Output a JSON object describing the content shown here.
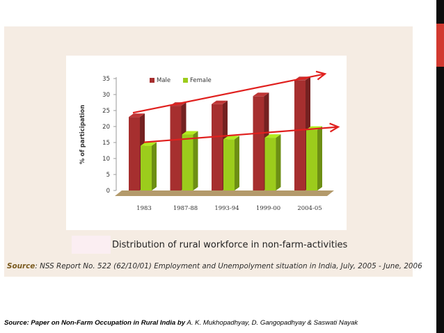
{
  "colors": {
    "male": "#a62f2f",
    "female": "#9ccc1c",
    "trend": "#e0201e",
    "floor": "#b39a6b"
  },
  "chart_data": {
    "type": "bar",
    "categories": [
      "1983",
      "1987-88",
      "1993-94",
      "1999-00",
      "2004-05"
    ],
    "series": [
      {
        "name": "Male",
        "values": [
          23,
          26.5,
          27,
          29.5,
          34.5
        ]
      },
      {
        "name": "Female",
        "values": [
          14,
          17.5,
          16,
          16.5,
          19
        ]
      }
    ],
    "ylabel": "% of participation",
    "ylim": [
      0,
      35
    ],
    "yticks": [
      0,
      5,
      10,
      15,
      20,
      25,
      30,
      35
    ],
    "legend": "top-left",
    "trend_lines": "red arrows over Male and Female bars"
  },
  "caption": "Distribution of rural workforce in non-farm-activities",
  "source_bottom_chart": {
    "label": "Source",
    "text": ": NSS Report No. 522 (62/10/01) Employment and Unempolyment situation in India, July, 2005 - June, 2006"
  },
  "source_footer": {
    "label": "Source: Paper on Non-Farm Occupation in Rural India by",
    "authors": " A. K. Mukhopadhyay, D. Gangopadhyay & Saswati Nayak"
  }
}
